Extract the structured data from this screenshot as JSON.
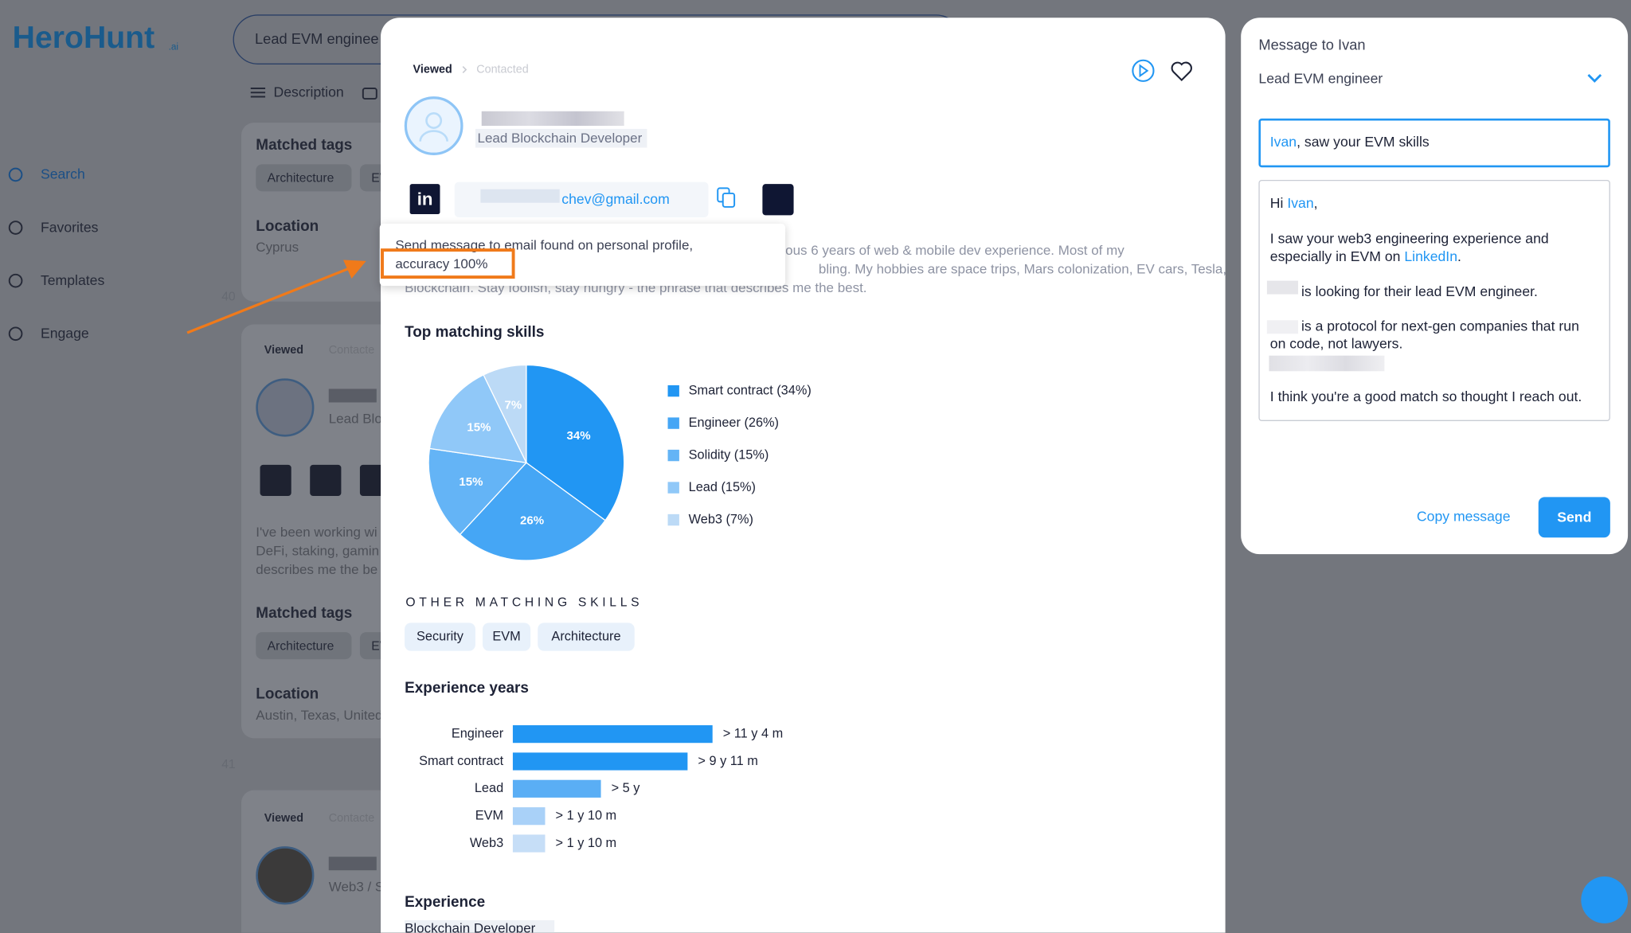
{
  "app": {
    "logo": "HeroHunt",
    "logo_suffix": ".ai",
    "search_query": "Lead EVM enginee",
    "tabs": [
      "Description"
    ]
  },
  "sidebar": {
    "items": [
      "Search",
      "Favorites",
      "Templates",
      "Engage"
    ]
  },
  "results": {
    "cards": [
      {
        "matched_tags_title": "Matched tags",
        "tags": [
          "Architecture",
          "EV"
        ],
        "location_title": "Location",
        "location": "Cyprus",
        "index": "40"
      },
      {
        "status": "Viewed",
        "status_next": "Contacte",
        "title": "Lead Blo",
        "bio": [
          "I've been working wi",
          "DeFi, staking, gamin",
          "describes me the be"
        ],
        "matched_tags_title": "Matched tags",
        "tags": [
          "Architecture",
          "EV"
        ],
        "location_title": "Location",
        "location": "Austin, Texas, United",
        "index": "41"
      },
      {
        "status": "Viewed",
        "status_next": "Contacte",
        "title": "Web3 / S"
      }
    ]
  },
  "profile": {
    "status": "Viewed",
    "status_next": "Contacted",
    "title": "Lead Blockchain Developer",
    "linkedin_icon": "in",
    "email": "chev@gmail.com",
    "bio": [
      "ous 6 years of web & mobile dev experience. Most of my",
      "bling. My hobbies are space trips, Mars colonization, EV cars, Tesla,",
      "Blockchain. Stay foolish, stay hungry - the phrase that describes me the best."
    ],
    "tooltip": [
      "Send message to email found on personal profile,",
      "accuracy 100%"
    ],
    "top_skills_title": "Top matching skills",
    "other_skills_title": "OTHER MATCHING SKILLS",
    "other_skills": [
      "Security",
      "EVM",
      "Architecture"
    ],
    "experience_years_title": "Experience years",
    "experience_title": "Experience",
    "experience": [
      "Blockchain Developer"
    ]
  },
  "chart_data": [
    {
      "type": "pie",
      "categories": [
        "Smart contract (34%)",
        "Engineer (26%)",
        "Solidity (15%)",
        "Lead (15%)",
        "Web3 (7%)"
      ],
      "values": [
        34,
        26,
        15,
        15,
        7
      ],
      "value_labels": [
        "34%",
        "26%",
        "15%",
        "15%",
        "7%"
      ],
      "colors": [
        "#2196f3",
        "#45a6f5",
        "#64b4f6",
        "#90c8f8",
        "#bcdaf6"
      ]
    },
    {
      "type": "bar",
      "orientation": "horizontal",
      "categories": [
        "Engineer",
        "Smart contract",
        "Lead",
        "EVM",
        "Web3"
      ],
      "values": [
        11.333,
        9.917,
        5,
        1.833,
        1.833
      ],
      "value_labels": [
        "> 11 y 4 m",
        "> 9 y 11 m",
        "> 5 y",
        "> 1 y 10 m",
        "> 1 y 10 m"
      ],
      "colors": [
        "#2196f3",
        "#2196f3",
        "#5aaef5",
        "#a9d1f8",
        "#c6def7"
      ]
    }
  ],
  "message": {
    "title": "Message to Ivan",
    "job": "Lead EVM engineer",
    "subject_name": "Ivan",
    "subject_rest": ", saw your EVM skills",
    "greeting": "Hi ",
    "name": "Ivan",
    "greeting_end": ",",
    "p1": "I saw your web3 engineering experience and",
    "p1b": "especially in EVM on ",
    "link": "LinkedIn",
    "p1_end": ".",
    "p2": "is looking for their lead EVM engineer.",
    "p3": "is a protocol for next-gen companies that run",
    "p3b": "on code, not lawyers.",
    "p4": "I think you're a good match so thought I reach out.",
    "copy": "Copy message",
    "send": "Send"
  }
}
